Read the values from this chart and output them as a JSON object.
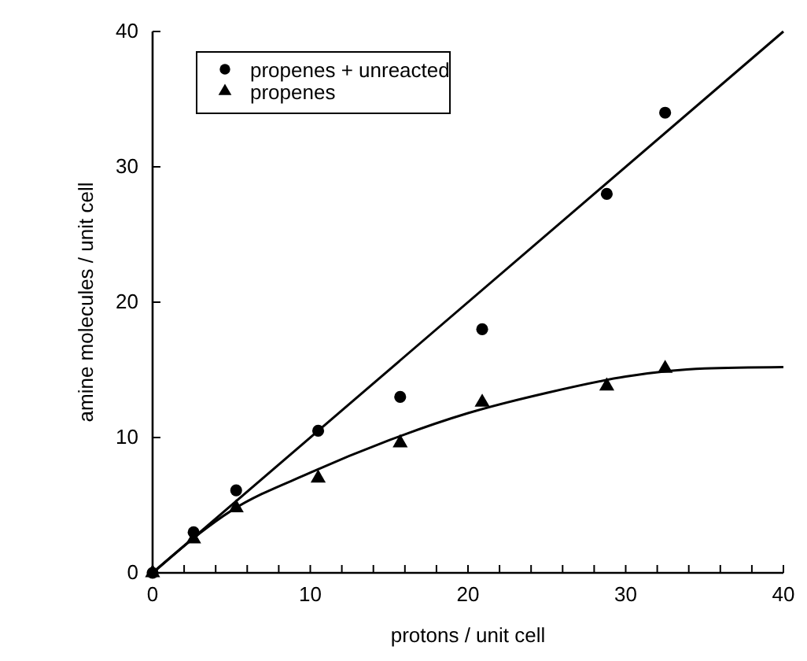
{
  "chart_data": {
    "type": "scatter",
    "xlabel": "protons / unit cell",
    "ylabel": "amine molecules / unit cell",
    "xlim": [
      0,
      40
    ],
    "ylim": [
      0,
      40
    ],
    "xticks": [
      0,
      {
        "value": 2,
        "label": null
      },
      {
        "value": 4,
        "label": null
      },
      {
        "value": 6,
        "label": null
      },
      {
        "value": 8,
        "label": null
      },
      10,
      {
        "value": 12,
        "label": null
      },
      {
        "value": 14,
        "label": null
      },
      {
        "value": 16,
        "label": null
      },
      {
        "value": 18,
        "label": null
      },
      20,
      {
        "value": 22,
        "label": null
      },
      {
        "value": 24,
        "label": null
      },
      {
        "value": 26,
        "label": null
      },
      {
        "value": 28,
        "label": null
      },
      30,
      {
        "value": 32,
        "label": null
      },
      {
        "value": 34,
        "label": null
      },
      {
        "value": 36,
        "label": null
      },
      {
        "value": 38,
        "label": null
      },
      40
    ],
    "yticks": [
      0,
      10,
      20,
      30,
      40
    ],
    "legend": "top left",
    "grid": false,
    "series": [
      {
        "name": "propenes + unreacted",
        "marker": "circle",
        "color": "#000000",
        "x": [
          0,
          2.6,
          5.3,
          10.5,
          15.7,
          20.9,
          28.8,
          32.5
        ],
        "values": [
          0,
          3,
          6.1,
          10.5,
          13,
          18,
          28,
          34
        ]
      },
      {
        "name": "propenes",
        "marker": "triangle",
        "color": "#000000",
        "x": [
          0,
          2.6,
          5.3,
          10.5,
          15.7,
          20.9,
          28.8,
          32.5
        ],
        "values": [
          0,
          2.5,
          4.8,
          7,
          9.6,
          12.6,
          13.8,
          15.1
        ]
      },
      {
        "type": "line",
        "marker": "none",
        "color": "#000000",
        "x": [
          0,
          40
        ],
        "values": [
          0,
          40
        ]
      },
      {
        "type": "line",
        "marker": "none",
        "color": "#000000",
        "x": [
          0,
          5,
          10,
          15,
          20,
          25,
          30,
          35,
          40
        ],
        "values": [
          0,
          4.6,
          7.4,
          9.8,
          11.8,
          13.3,
          14.5,
          15.1,
          15.2
        ]
      }
    ]
  }
}
